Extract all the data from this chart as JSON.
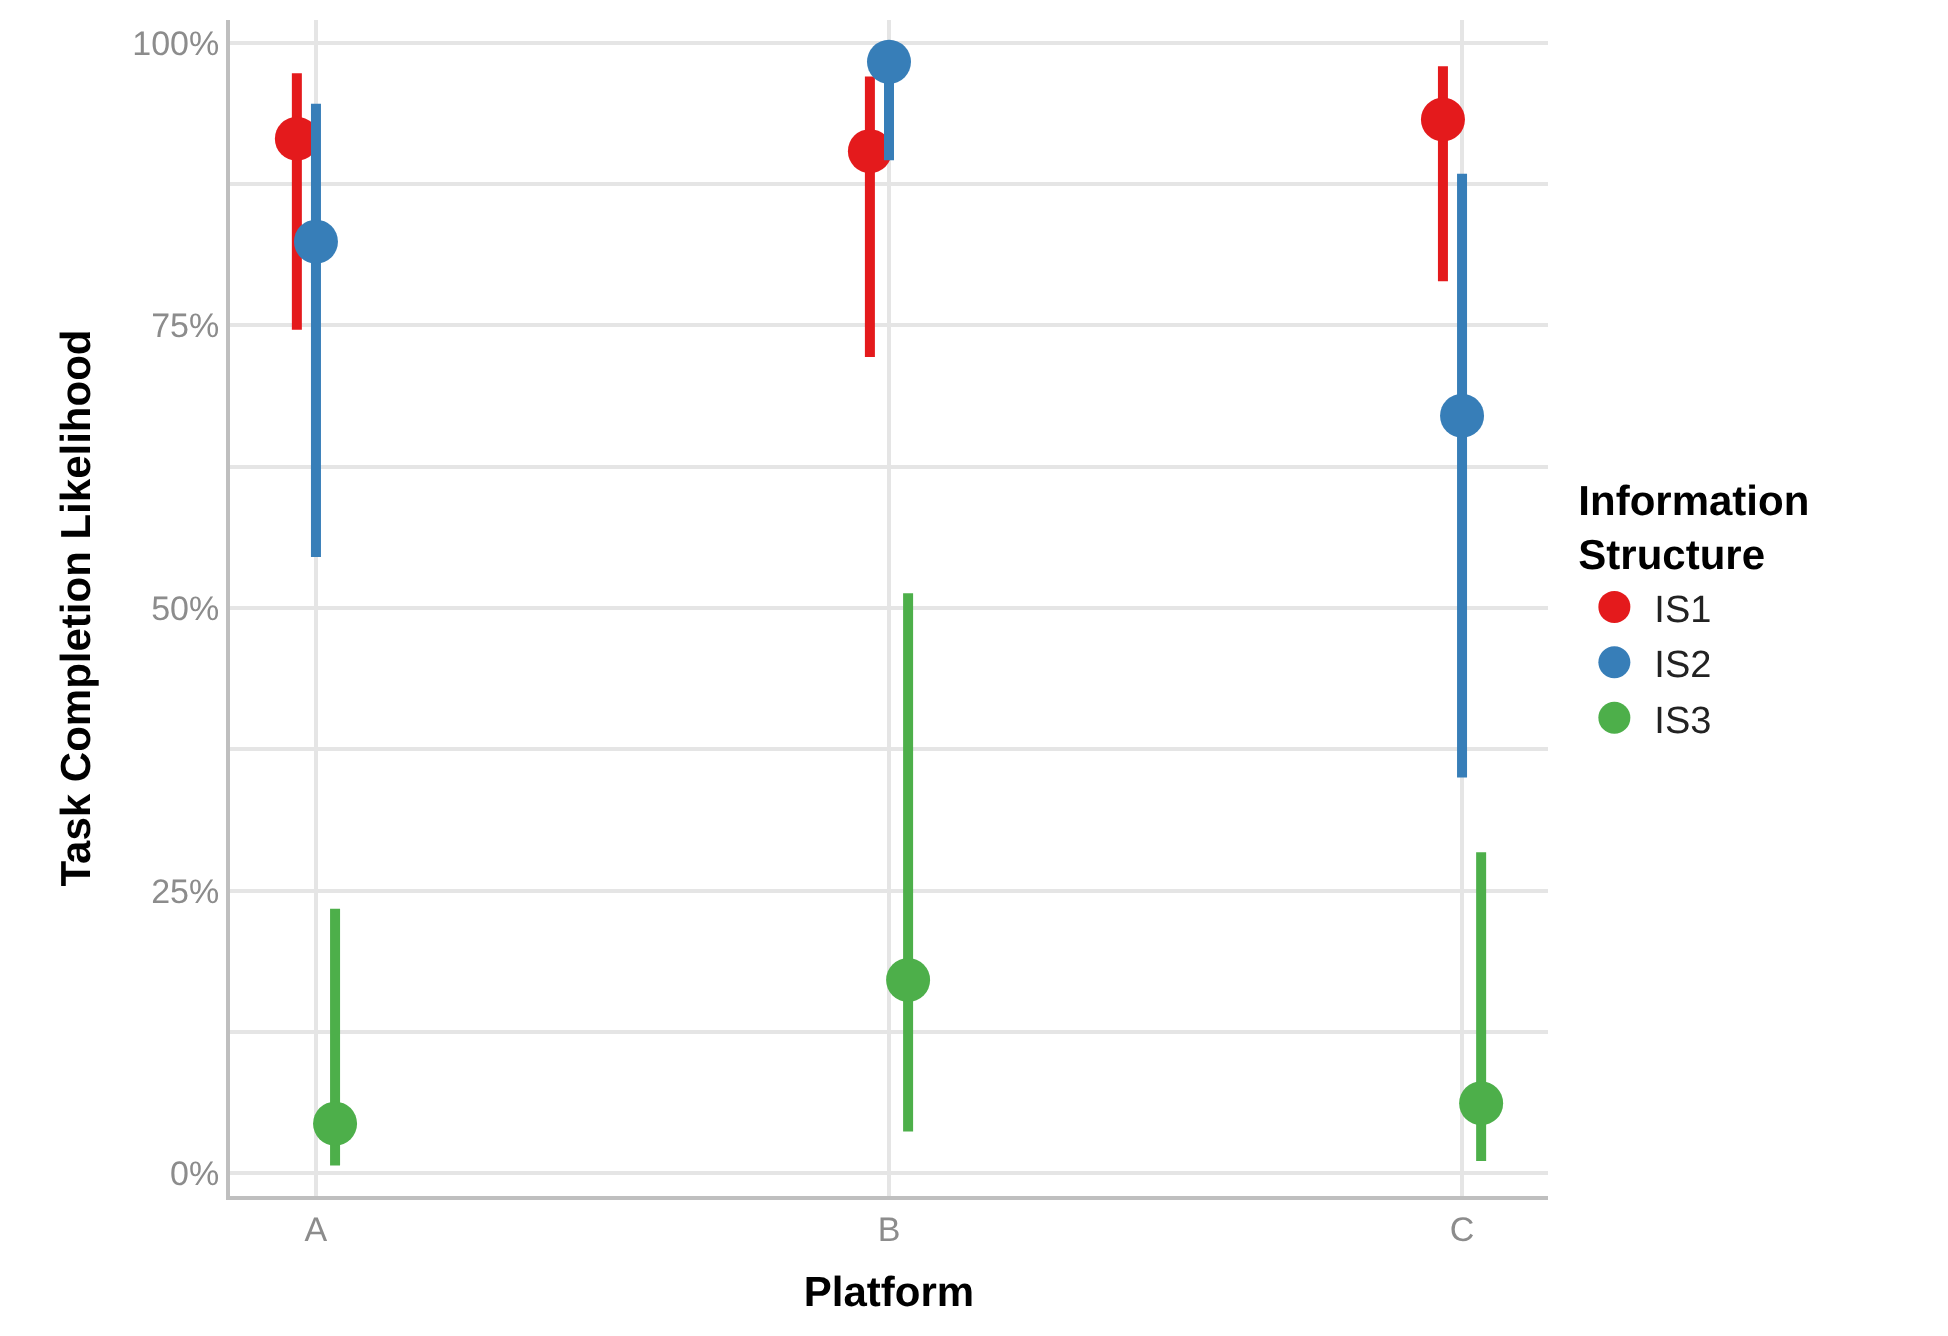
{
  "chart_data": {
    "type": "scatter",
    "xlabel": "Platform",
    "ylabel": "Task Completion Likelihood",
    "legend_title": "Information Structure",
    "categories": [
      "A",
      "B",
      "C"
    ],
    "series": [
      {
        "name": "IS1",
        "color": "#e41a1c",
        "values": [
          91.5,
          90.4,
          93.2
        ],
        "errors": [
          [
            74.6,
            97.3
          ],
          [
            72.2,
            97.0
          ],
          [
            78.9,
            97.9
          ]
        ]
      },
      {
        "name": "IS2",
        "color": "#377eb8",
        "values": [
          82.4,
          98.3,
          67.0
        ],
        "errors": [
          [
            54.5,
            94.6
          ],
          [
            89.6,
            100
          ],
          [
            35.0,
            88.4
          ]
        ]
      },
      {
        "name": "IS3",
        "color": "#4daf4a",
        "values": [
          4.4,
          17.1,
          6.2
        ],
        "errors": [
          [
            0.7,
            23.4
          ],
          [
            3.7,
            51.3
          ],
          [
            1.1,
            28.4
          ]
        ]
      }
    ],
    "ylim": [
      -2,
      102
    ],
    "yticks": [
      {
        "value": 0,
        "label": "0%"
      },
      {
        "value": 12.5,
        "label": null
      },
      {
        "value": 25,
        "label": "25%"
      },
      {
        "value": 37.5,
        "label": null
      },
      {
        "value": 50,
        "label": "50%"
      },
      {
        "value": 62.5,
        "label": null
      },
      {
        "value": 75,
        "label": "75%"
      },
      {
        "value": 87.5,
        "label": null
      },
      {
        "value": 100,
        "label": "100%"
      }
    ],
    "grid": true,
    "legend": "right",
    "marker": "circle"
  }
}
